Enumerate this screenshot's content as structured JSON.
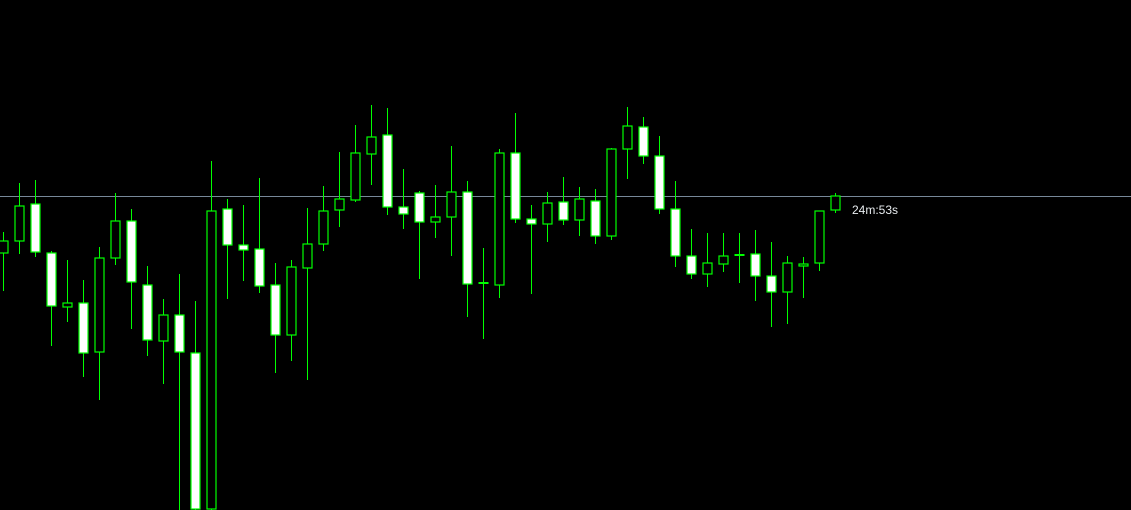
{
  "chart_data": {
    "type": "candlestick",
    "title": "",
    "xlabel": "",
    "ylabel": "",
    "grid": false,
    "background_color": "#000000",
    "candle_outline_color": "#00ff00",
    "bearish_fill_color": "#ffffff",
    "bullish_fill_color": "#000000",
    "price_line_color": "#778899",
    "ylim": [
      440,
      910
    ],
    "current_price": 804,
    "bar_timer": "24m:53s",
    "ohlc": [
      [
        747,
        768,
        709,
        759
      ],
      [
        759,
        817,
        746,
        794
      ],
      [
        796,
        820,
        743,
        748
      ],
      [
        747,
        749,
        654,
        694
      ],
      [
        693,
        740,
        678,
        697
      ],
      [
        697,
        720,
        623,
        647
      ],
      [
        648,
        753,
        600,
        742
      ],
      [
        742,
        807,
        735,
        779
      ],
      [
        779,
        791,
        671,
        718
      ],
      [
        715,
        734,
        644,
        660
      ],
      [
        659,
        701,
        616,
        685
      ],
      [
        685,
        726,
        480,
        648
      ],
      [
        647,
        699,
        440,
        460
      ],
      [
        460,
        839,
        440,
        789
      ],
      [
        791,
        801,
        701,
        755
      ],
      [
        755,
        795,
        719,
        750
      ],
      [
        751,
        822,
        707,
        714
      ],
      [
        715,
        737,
        627,
        665
      ],
      [
        665,
        740,
        639,
        733
      ],
      [
        732,
        792,
        620,
        756
      ],
      [
        756,
        814,
        749,
        789
      ],
      [
        790,
        848,
        773,
        801
      ],
      [
        800,
        875,
        798,
        847
      ],
      [
        846,
        895,
        815,
        863
      ],
      [
        865,
        892,
        785,
        793
      ],
      [
        793,
        831,
        771,
        786
      ],
      [
        807,
        809,
        721,
        778
      ],
      [
        778,
        815,
        762,
        783
      ],
      [
        783,
        854,
        744,
        808
      ],
      [
        808,
        819,
        683,
        716
      ],
      [
        717,
        752,
        661,
        717
      ],
      [
        715,
        851,
        702,
        847
      ],
      [
        847,
        887,
        777,
        781
      ],
      [
        781,
        795,
        706,
        776
      ],
      [
        776,
        808,
        758,
        797
      ],
      [
        798,
        823,
        775,
        780
      ],
      [
        780,
        813,
        764,
        801
      ],
      [
        799,
        811,
        756,
        764
      ],
      [
        764,
        852,
        760,
        851
      ],
      [
        851,
        893,
        821,
        874
      ],
      [
        873,
        883,
        836,
        844
      ],
      [
        844,
        864,
        786,
        791
      ],
      [
        791,
        819,
        733,
        744
      ],
      [
        744,
        771,
        721,
        726
      ],
      [
        726,
        767,
        713,
        737
      ],
      [
        736,
        767,
        728,
        744
      ],
      [
        745,
        767,
        717,
        745
      ],
      [
        746,
        770,
        699,
        724
      ],
      [
        724,
        758,
        673,
        708
      ],
      [
        708,
        744,
        676,
        737
      ],
      [
        734,
        743,
        702,
        736
      ],
      [
        737,
        789,
        729,
        789
      ],
      [
        790,
        807,
        787,
        804
      ]
    ]
  }
}
